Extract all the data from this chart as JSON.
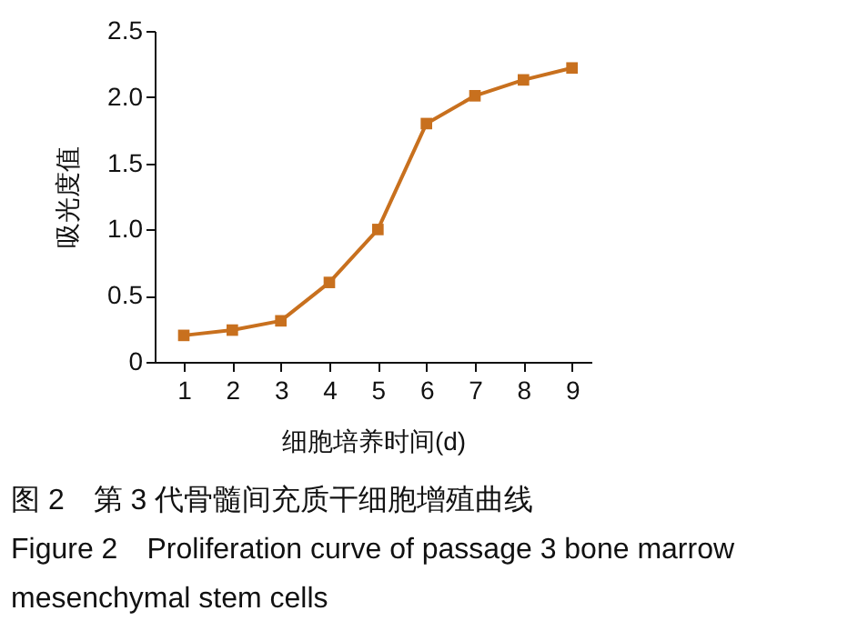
{
  "chart_data": {
    "type": "line",
    "x": [
      1,
      2,
      3,
      4,
      5,
      6,
      7,
      8,
      9
    ],
    "series": [
      {
        "color": "#c8701e",
        "values": [
          0.2,
          0.24,
          0.31,
          0.6,
          1.0,
          1.8,
          2.01,
          2.13,
          2.22
        ]
      }
    ],
    "xlim": [
      0.4,
      9.4
    ],
    "xticks": [
      1,
      2,
      3,
      4,
      5,
      6,
      7,
      8,
      9
    ],
    "ylim": [
      0,
      2.5
    ],
    "yticks": [
      0,
      0.5,
      {
        "value": 1,
        "label": "1.0"
      },
      1.5,
      {
        "value": 2,
        "label": "2.0"
      },
      2.5
    ],
    "xlabel": "细胞培养时间(d)",
    "ylabel": "吸光度值",
    "marker": "square",
    "line_style": "solid",
    "grid": false,
    "annotations": [
      "图 2　第 3 代骨髓间充质干细胞增殖曲线",
      "Figure 2　Proliferation curve of passage 3 bone marrow mesenchymal stem cells"
    ]
  }
}
